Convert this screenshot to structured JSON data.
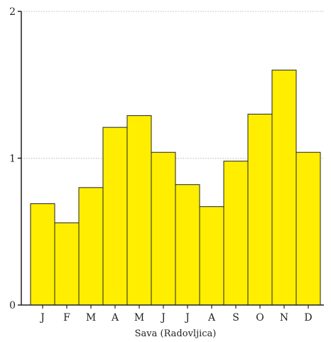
{
  "chart_data": {
    "type": "bar",
    "categories": [
      "J",
      "F",
      "M",
      "A",
      "M",
      "J",
      "J",
      "A",
      "S",
      "O",
      "N",
      "D"
    ],
    "values": [
      0.69,
      0.56,
      0.8,
      1.21,
      1.29,
      1.04,
      0.82,
      0.67,
      0.98,
      1.3,
      1.6,
      1.04
    ],
    "title": "",
    "xlabel": "Sava (Radovljica)",
    "ylabel": "",
    "ylim": [
      0,
      2
    ],
    "yticks": [
      0,
      1,
      2
    ],
    "grid": true,
    "colors": {
      "bar_fill": "#ffee00",
      "bar_stroke": "#222222",
      "grid": "#bbbbbb",
      "axis": "#222222"
    }
  }
}
